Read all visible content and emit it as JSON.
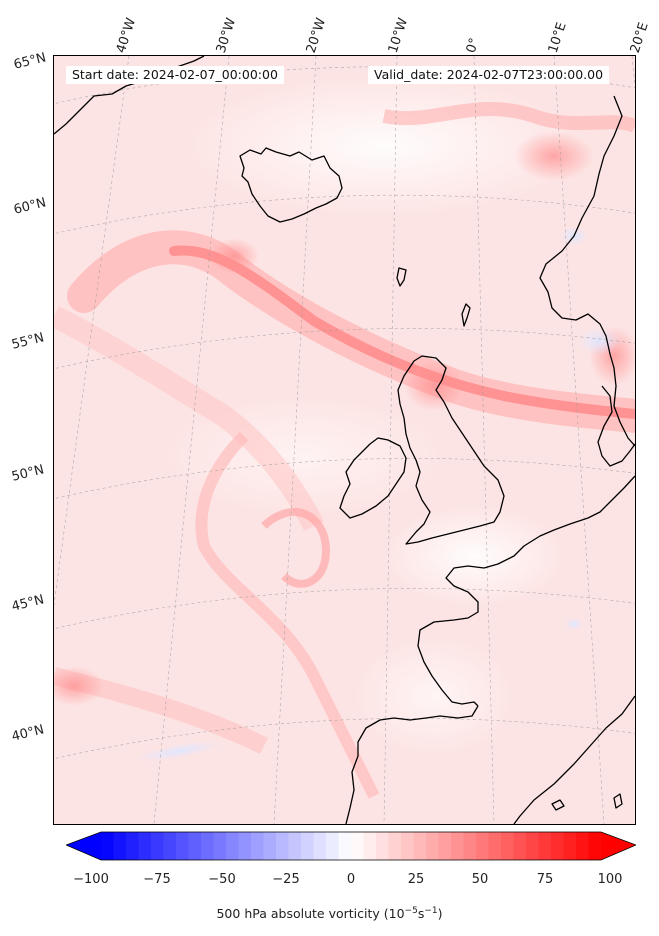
{
  "map": {
    "start_label": "Start date: 2024-02-07_00:00:00",
    "valid_label": "Valid_date: 2024-02-07T23:00:00.00",
    "projection": "lambert-conformal",
    "extent": {
      "lon_min": -45,
      "lon_max": 20,
      "lat_min": 36,
      "lat_max": 66
    },
    "field": "500 hPa absolute vorticity",
    "longitude_labels": [
      "40°W",
      "30°W",
      "20°W",
      "10°W",
      "0°",
      "10°E",
      "20°E"
    ],
    "latitude_labels": [
      "65°N",
      "60°N",
      "55°N",
      "50°N",
      "45°N",
      "40°N"
    ],
    "gridlines": true,
    "coastline_color": "#000000"
  },
  "colorbar": {
    "colormap": "bwr",
    "min": -100,
    "max": 100,
    "extend": "both",
    "ticks": [
      "−100",
      "−75",
      "−50",
      "−25",
      "0",
      "25",
      "50",
      "75",
      "100"
    ],
    "label_main": "500 hPa absolute vorticity (10",
    "label_exp1": "−5",
    "label_mid": "s",
    "label_exp2": "−1",
    "label_end": ")"
  }
}
